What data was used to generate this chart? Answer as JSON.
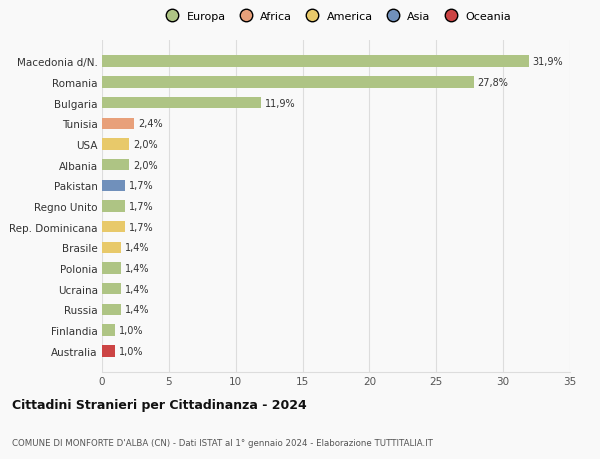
{
  "countries": [
    "Macedonia d/N.",
    "Romania",
    "Bulgaria",
    "Tunisia",
    "USA",
    "Albania",
    "Pakistan",
    "Regno Unito",
    "Rep. Dominicana",
    "Brasile",
    "Polonia",
    "Ucraina",
    "Russia",
    "Finlandia",
    "Australia"
  ],
  "values": [
    31.9,
    27.8,
    11.9,
    2.4,
    2.0,
    2.0,
    1.7,
    1.7,
    1.7,
    1.4,
    1.4,
    1.4,
    1.4,
    1.0,
    1.0
  ],
  "labels": [
    "31,9%",
    "27,8%",
    "11,9%",
    "2,4%",
    "2,0%",
    "2,0%",
    "1,7%",
    "1,7%",
    "1,7%",
    "1,4%",
    "1,4%",
    "1,4%",
    "1,4%",
    "1,0%",
    "1,0%"
  ],
  "colors": [
    "#aec484",
    "#aec484",
    "#aec484",
    "#e8a07a",
    "#e8c96a",
    "#aec484",
    "#7090bb",
    "#aec484",
    "#e8c96a",
    "#e8c96a",
    "#aec484",
    "#aec484",
    "#aec484",
    "#aec484",
    "#cc4444"
  ],
  "continent_labels": [
    "Europa",
    "Africa",
    "America",
    "Asia",
    "Oceania"
  ],
  "continent_colors": [
    "#aec484",
    "#e8a07a",
    "#e8c96a",
    "#7090bb",
    "#cc4444"
  ],
  "title": "Cittadini Stranieri per Cittadinanza - 2024",
  "subtitle": "COMUNE DI MONFORTE D'ALBA (CN) - Dati ISTAT al 1° gennaio 2024 - Elaborazione TUTTITALIA.IT",
  "xlim": [
    0,
    35
  ],
  "xticks": [
    0,
    5,
    10,
    15,
    20,
    25,
    30,
    35
  ],
  "background_color": "#f9f9f9",
  "grid_color": "#dddddd",
  "bar_height": 0.55
}
